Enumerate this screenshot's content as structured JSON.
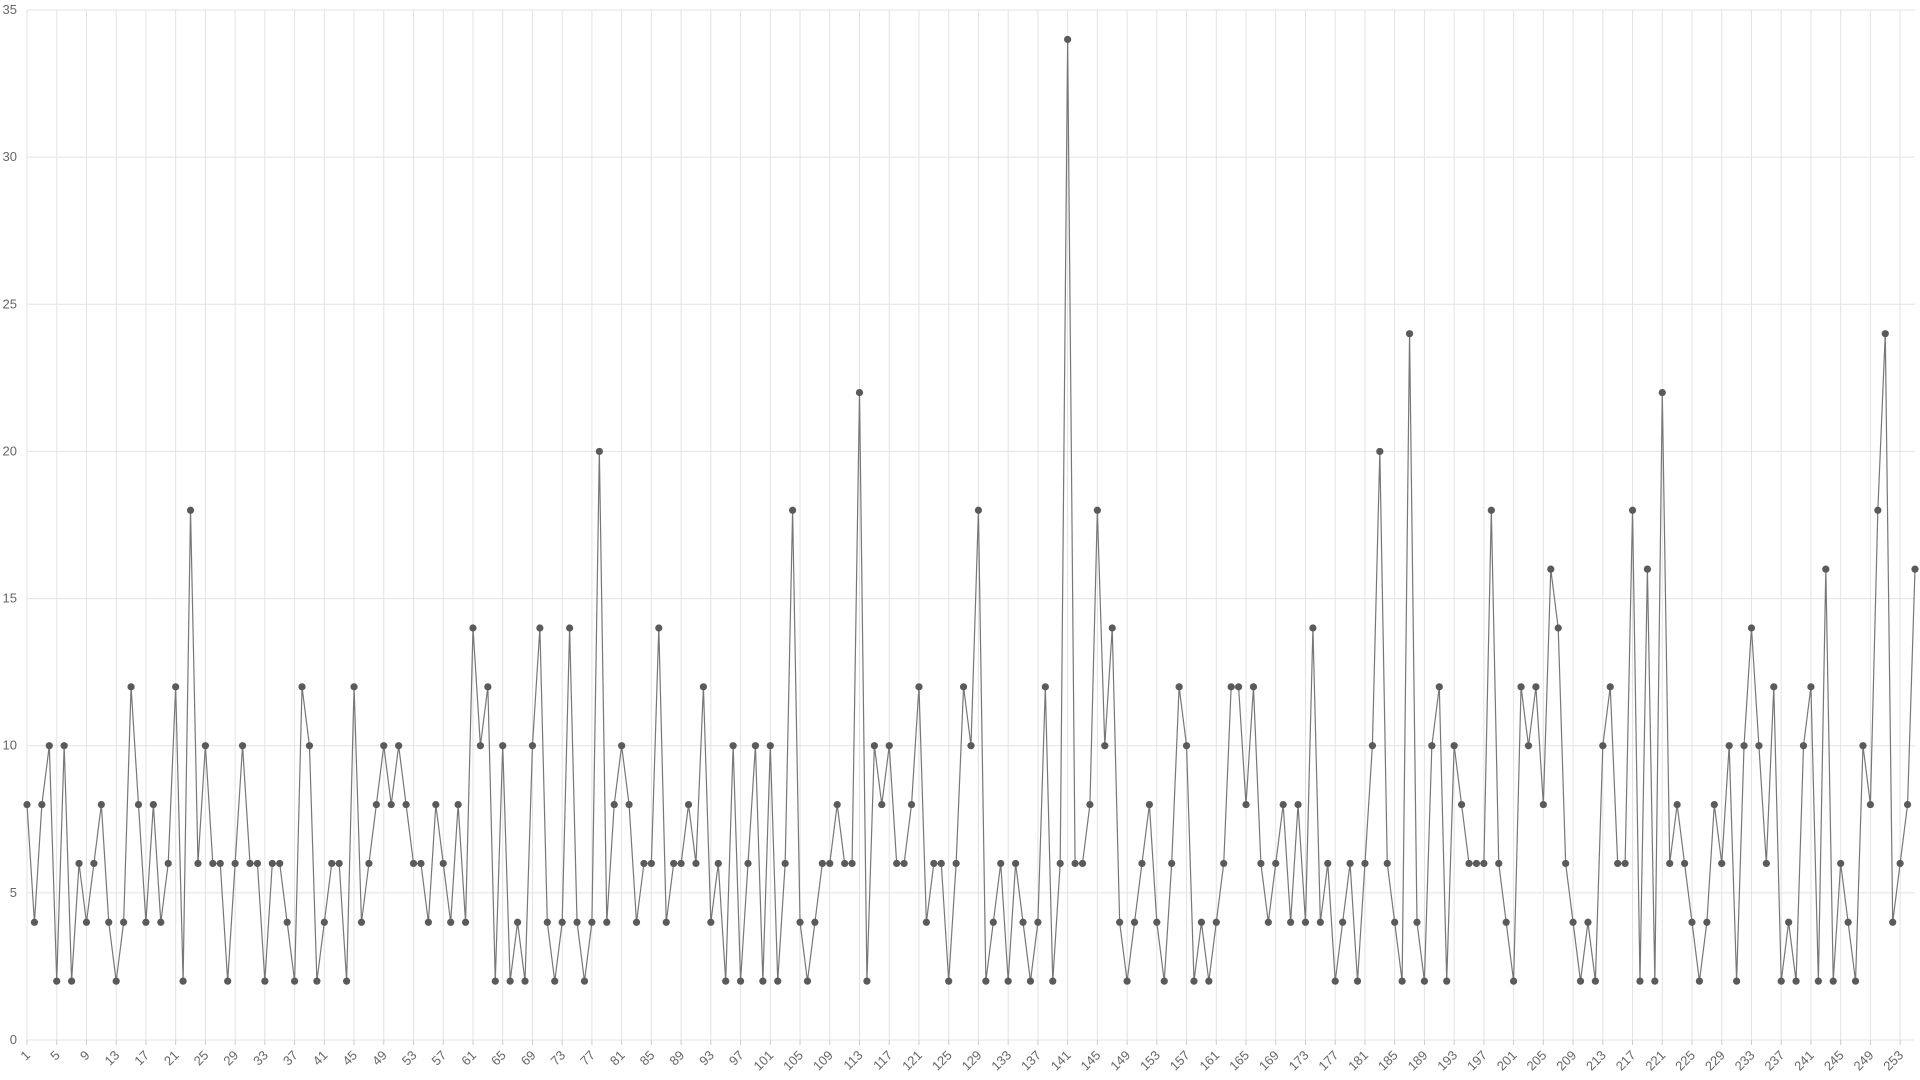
{
  "chart_data": {
    "type": "line",
    "categories": [
      1,
      null,
      null,
      null,
      5,
      null,
      null,
      null,
      9,
      null,
      null,
      null,
      13,
      null,
      null,
      null,
      17,
      null,
      null,
      null,
      21,
      null,
      null,
      null,
      25,
      null,
      null,
      null,
      29,
      null,
      null,
      null,
      33,
      null,
      null,
      null,
      37,
      null,
      null,
      null,
      41,
      null,
      null,
      null,
      45,
      null,
      null,
      null,
      49,
      null,
      null,
      null,
      53,
      null,
      null,
      null,
      57,
      null,
      null,
      null,
      61,
      null,
      null,
      null,
      65,
      null,
      null,
      null,
      69,
      null,
      null,
      null,
      73,
      null,
      null,
      null,
      77,
      null,
      null,
      null,
      81,
      null,
      null,
      null,
      85,
      null,
      null,
      null,
      89,
      null,
      null,
      null,
      93,
      null,
      null,
      null,
      97,
      null,
      null,
      null,
      101,
      null,
      null,
      null,
      105,
      null,
      null,
      null,
      109,
      null,
      null,
      null,
      113,
      null,
      null,
      null,
      117,
      null,
      null,
      null,
      121,
      null,
      null,
      null,
      125,
      null,
      null,
      null,
      129,
      null,
      null,
      null,
      133,
      null,
      null,
      null,
      137,
      null,
      null,
      null,
      141,
      null,
      null,
      null,
      145,
      null,
      null,
      null,
      149,
      null,
      null,
      null,
      153,
      null,
      null,
      null,
      157,
      null,
      null,
      null,
      161,
      null,
      null,
      null,
      165,
      null,
      null,
      null,
      169,
      null,
      null,
      null,
      173,
      null,
      null,
      null,
      177,
      null,
      null,
      null,
      181,
      null,
      null,
      null,
      185,
      null,
      null,
      null,
      189,
      null,
      null,
      null,
      193,
      null,
      null,
      null,
      197,
      null,
      null,
      null,
      201,
      null,
      null,
      null,
      205,
      null,
      null,
      null,
      209,
      null,
      null,
      null,
      213,
      null,
      null,
      null,
      217,
      null,
      null,
      null,
      221,
      null,
      null,
      null,
      225,
      null,
      null,
      null,
      229,
      null,
      null,
      null,
      233,
      null,
      null,
      null,
      237,
      null,
      null,
      null,
      241,
      null,
      null,
      null,
      245,
      null,
      null,
      null,
      249,
      null,
      null,
      null,
      253,
      null,
      null
    ],
    "values": [
      8,
      4,
      8,
      10,
      2,
      10,
      2,
      6,
      4,
      6,
      8,
      4,
      2,
      4,
      12,
      8,
      4,
      8,
      4,
      6,
      12,
      2,
      18,
      6,
      10,
      6,
      6,
      2,
      6,
      10,
      6,
      6,
      2,
      6,
      6,
      4,
      2,
      12,
      10,
      2,
      4,
      6,
      6,
      2,
      12,
      4,
      6,
      8,
      10,
      8,
      10,
      8,
      6,
      6,
      4,
      8,
      6,
      4,
      8,
      4,
      14,
      10,
      12,
      2,
      10,
      2,
      4,
      2,
      10,
      14,
      4,
      2,
      4,
      14,
      4,
      2,
      4,
      20,
      4,
      8,
      10,
      8,
      4,
      6,
      6,
      14,
      4,
      6,
      6,
      8,
      6,
      12,
      4,
      6,
      2,
      10,
      2,
      6,
      10,
      2,
      10,
      2,
      6,
      18,
      4,
      2,
      4,
      6,
      6,
      8,
      6,
      6,
      22,
      2,
      10,
      8,
      10,
      6,
      6,
      8,
      12,
      4,
      6,
      6,
      2,
      6,
      12,
      10,
      18,
      2,
      4,
      6,
      2,
      6,
      4,
      2,
      4,
      12,
      2,
      6,
      34,
      6,
      6,
      8,
      18,
      10,
      14,
      4,
      2,
      4,
      6,
      8,
      4,
      2,
      6,
      12,
      10,
      2,
      4,
      2,
      4,
      6,
      12,
      12,
      8,
      12,
      6,
      4,
      6,
      8,
      4,
      8,
      4,
      14,
      4,
      6,
      2,
      4,
      6,
      2,
      6,
      10,
      20,
      6,
      4,
      2,
      24,
      4,
      2,
      10,
      12,
      2,
      10,
      8,
      6,
      6,
      6,
      18,
      6,
      4,
      2,
      12,
      10,
      12,
      8,
      16,
      14,
      6,
      4,
      2,
      4,
      2,
      10,
      12,
      6,
      6,
      18,
      2,
      16,
      2,
      22,
      6,
      8,
      6,
      4,
      2,
      4,
      8,
      6,
      10,
      2,
      10,
      14,
      10,
      6,
      12,
      2,
      4,
      2,
      10,
      12,
      2,
      16,
      2,
      6,
      4,
      2,
      10,
      8,
      18,
      24,
      4,
      6,
      8,
      16
    ],
    "color": "#777777",
    "marker_color": "#5a5a5a",
    "ylim": [
      0,
      35
    ],
    "yticks": [
      0,
      5,
      10,
      15,
      20,
      25,
      30,
      35
    ],
    "grid": true
  }
}
